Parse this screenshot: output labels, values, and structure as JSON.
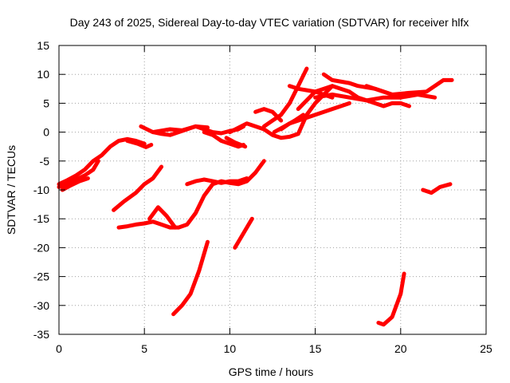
{
  "chart_data": {
    "type": "line",
    "title": "Day 243 of 2025, Sidereal Day-to-day VTEC variation (SDTVAR) for receiver hlfx",
    "xlabel": "GPS time / hours",
    "ylabel": "SDTVAR / TECUs",
    "xlim": [
      0,
      25
    ],
    "ylim": [
      -35,
      15
    ],
    "xticks": [
      0,
      5,
      10,
      15,
      20,
      25
    ],
    "yticks": [
      -35,
      -30,
      -25,
      -20,
      -15,
      -10,
      -5,
      0,
      5,
      10,
      15
    ],
    "grid": true,
    "line_color": "#ff0000",
    "series": [
      {
        "x": [
          0,
          0.5,
          1,
          1.5,
          2,
          2.5,
          3,
          3.5,
          4,
          4.5,
          5
        ],
        "y": [
          -9,
          -8.3,
          -7.5,
          -6.5,
          -5,
          -4,
          -2.5,
          -1.5,
          -1.2,
          -1.5,
          -2
        ]
      },
      {
        "x": [
          0,
          0.5,
          1,
          1.5,
          2,
          2.3
        ],
        "y": [
          -9.5,
          -9,
          -8.2,
          -7.5,
          -6.5,
          -5
        ]
      },
      {
        "x": [
          0.2,
          0.7,
          1.2,
          1.7
        ],
        "y": [
          -10,
          -9.2,
          -8.5,
          -8
        ]
      },
      {
        "x": [
          4,
          4.6,
          5.1,
          5.4
        ],
        "y": [
          -1.5,
          -2,
          -2.6,
          -2.2
        ]
      },
      {
        "x": [
          4.8,
          5.5,
          6,
          6.5,
          7,
          7.5,
          8,
          8.5,
          9,
          9.5,
          10,
          10.5,
          10.8
        ],
        "y": [
          1,
          0,
          -0.3,
          -0.5,
          0,
          0.5,
          1,
          0.5,
          0,
          -0.2,
          0.2,
          0.5,
          1
        ]
      },
      {
        "x": [
          5.5,
          6.5,
          7.2,
          8,
          8.7
        ],
        "y": [
          0,
          0.5,
          0.3,
          1,
          0.8
        ]
      },
      {
        "x": [
          8.5,
          9,
          9.5,
          10,
          10.5,
          10.8
        ],
        "y": [
          0,
          -0.5,
          -1.5,
          -2,
          -2.5,
          -2.2
        ]
      },
      {
        "x": [
          9.8,
          10.3,
          10.9
        ],
        "y": [
          -1,
          -1.8,
          -2.5
        ]
      },
      {
        "x": [
          10,
          11,
          11.5,
          12,
          12.5,
          13,
          13.5,
          14,
          14.5,
          15,
          16
        ],
        "y": [
          0,
          1.5,
          1,
          0.5,
          -0.5,
          -1,
          -0.8,
          -0.3,
          3,
          5,
          8
        ]
      },
      {
        "x": [
          11.5,
          12,
          12.5,
          13
        ],
        "y": [
          3.5,
          4,
          3.5,
          2
        ]
      },
      {
        "x": [
          12,
          12.5,
          13,
          13.5,
          14,
          14.5
        ],
        "y": [
          1,
          2,
          3,
          5,
          8,
          11
        ]
      },
      {
        "x": [
          12.6,
          13.2,
          13.8,
          14.3
        ],
        "y": [
          0,
          1,
          2,
          3
        ]
      },
      {
        "x": [
          13,
          13.5,
          14,
          14.5,
          15,
          15.5,
          16,
          16.5,
          17
        ],
        "y": [
          0.5,
          1.5,
          2,
          2.5,
          3,
          3.5,
          4,
          4.5,
          5
        ]
      },
      {
        "x": [
          14,
          15,
          16,
          17,
          17.5,
          18,
          18.5,
          19,
          19.5,
          20,
          20.5
        ],
        "y": [
          4,
          7,
          8,
          7,
          6,
          5.5,
          5,
          4.5,
          5,
          5,
          4.5
        ]
      },
      {
        "x": [
          13.5,
          14,
          15,
          15.5,
          16
        ],
        "y": [
          8,
          7.5,
          7,
          6.5,
          6
        ]
      },
      {
        "x": [
          15,
          16,
          17,
          18,
          19,
          20,
          21,
          22
        ],
        "y": [
          6,
          6.5,
          6,
          5.5,
          6,
          6,
          6.5,
          6
        ]
      },
      {
        "x": [
          15.5,
          16,
          17,
          17.5,
          18.5,
          19.5,
          20.5,
          21.5,
          22,
          22.5,
          23
        ],
        "y": [
          10,
          9,
          8.5,
          8,
          7.5,
          6.5,
          6.8,
          7,
          8,
          9,
          9
        ]
      },
      {
        "x": [
          18,
          18.5,
          19,
          19.5,
          20
        ],
        "y": [
          8,
          7.5,
          7,
          6.5,
          6
        ]
      },
      {
        "x": [
          3.2,
          3.8,
          4.5,
          5,
          5.5,
          6
        ],
        "y": [
          -13.5,
          -12,
          -10.5,
          -9,
          -8,
          -6
        ]
      },
      {
        "x": [
          3.5,
          4,
          4.5,
          5,
          5.5,
          6,
          6.5,
          7,
          7.5,
          8,
          8.5,
          9,
          9.5,
          10,
          10.5,
          11,
          11.5,
          12
        ],
        "y": [
          -16.5,
          -16.3,
          -16,
          -15.8,
          -15.5,
          -16,
          -16.5,
          -16.5,
          -16,
          -14,
          -11,
          -9,
          -8.5,
          -8.8,
          -9,
          -8.5,
          -7,
          -5
        ]
      },
      {
        "x": [
          5.3,
          5.8,
          6.3,
          6.8
        ],
        "y": [
          -15,
          -13,
          -14.5,
          -16.5
        ]
      },
      {
        "x": [
          7.5,
          8,
          8.5,
          9,
          9.5,
          10,
          10.5,
          11
        ],
        "y": [
          -9,
          -8.5,
          -8.2,
          -8.5,
          -8.8,
          -8.5,
          -8.5,
          -8
        ]
      },
      {
        "x": [
          6.7,
          7.2,
          7.7,
          8.2,
          8.7
        ],
        "y": [
          -31.5,
          -30,
          -28,
          -24,
          -19
        ]
      },
      {
        "x": [
          10.3,
          10.6,
          11,
          11.3
        ],
        "y": [
          -20,
          -18.5,
          -16.5,
          -15
        ]
      },
      {
        "x": [
          18.7,
          19,
          19.5,
          20,
          20.2
        ],
        "y": [
          -33,
          -33.3,
          -32,
          -28,
          -24.5
        ]
      },
      {
        "x": [
          21.3,
          21.8,
          22.3,
          22.9
        ],
        "y": [
          -10,
          -10.5,
          -9.5,
          -9
        ]
      }
    ]
  }
}
